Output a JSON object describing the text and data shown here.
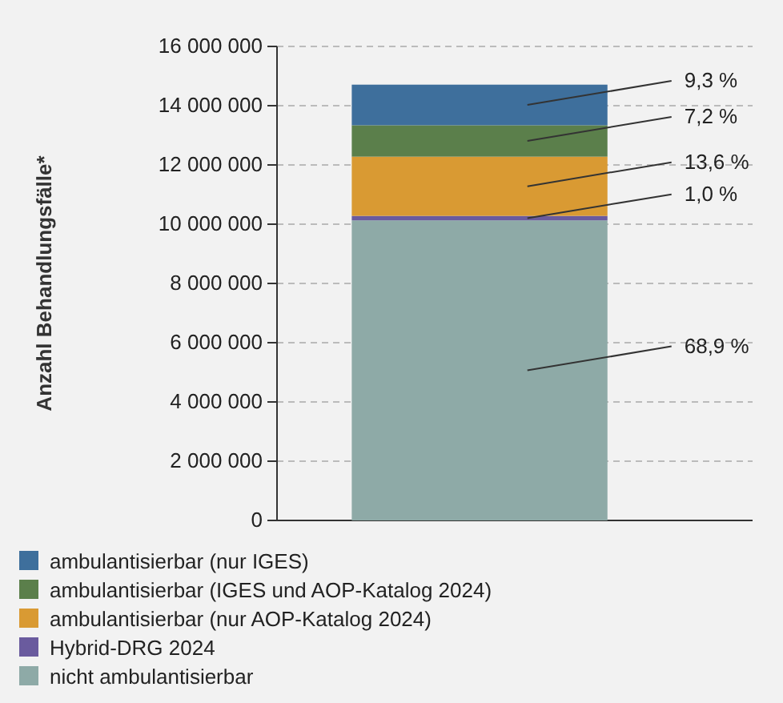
{
  "chart_data": {
    "type": "bar",
    "ylabel": "Anzahl Behandlungsfälle*",
    "categories": [
      null
    ],
    "stacked": true,
    "grid": "y",
    "legend": "bottom",
    "ylim": [
      0,
      16000000
    ],
    "yticks": [
      0,
      {
        "value": 2000000,
        "label": "2 000 000"
      },
      {
        "value": 4000000,
        "label": "4 000 000"
      },
      {
        "value": 6000000,
        "label": "6 000 000"
      },
      {
        "value": 8000000,
        "label": "8 000 000"
      },
      {
        "value": 10000000,
        "label": "10 000 000"
      },
      {
        "value": 12000000,
        "label": "12 000 000"
      },
      {
        "value": 14000000,
        "label": "14 000 000"
      },
      {
        "value": 16000000,
        "label": "16 000 000"
      }
    ],
    "series": [
      {
        "name": "nicht ambulantisierbar",
        "color": "#8eaaa7",
        "values": [
          10130000
        ]
      },
      {
        "name": "Hybrid-DRG 2024",
        "color": "#6a5b9e",
        "values": [
          150000
        ]
      },
      {
        "name": "ambulantisierbar (nur AOP-Katalog 2024)",
        "color": "#d99a33",
        "values": [
          2000000
        ]
      },
      {
        "name": "ambulantisierbar (IGES und AOP-Katalog 2024)",
        "color": "#5b7f4b",
        "values": [
          1060000
        ]
      },
      {
        "name": "ambulantisierbar (nur IGES)",
        "color": "#3e6f9c",
        "values": [
          1370000
        ]
      }
    ],
    "annotations": [
      "68,9 %",
      "1,0 %",
      "13,6 %",
      "7,2 %",
      "9,3 %"
    ]
  }
}
